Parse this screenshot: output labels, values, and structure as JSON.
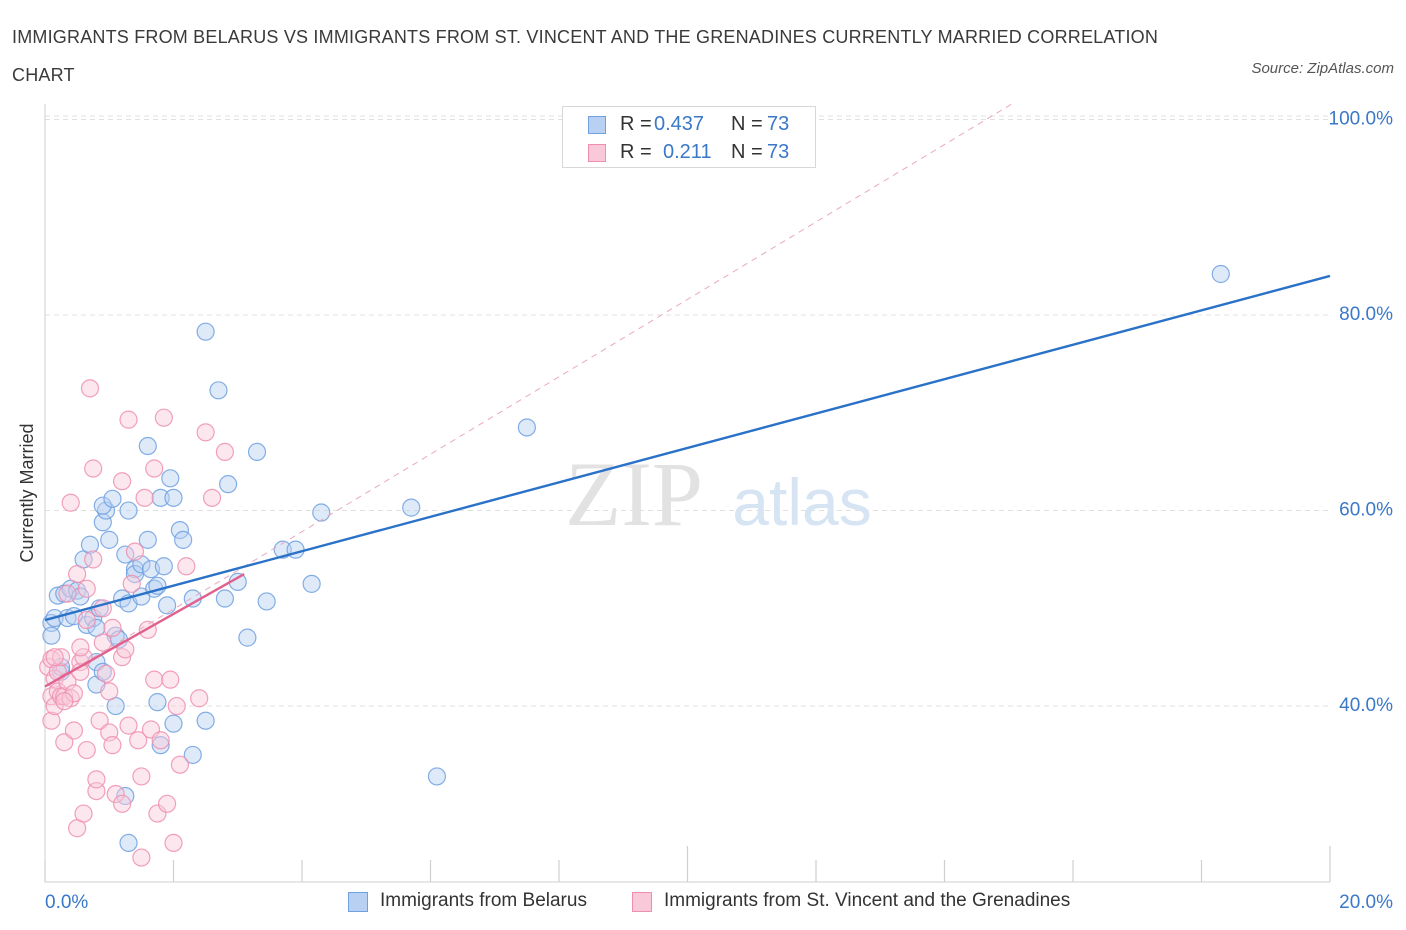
{
  "title": "IMMIGRANTS FROM BELARUS VS IMMIGRANTS FROM ST. VINCENT AND THE GRENADINES CURRENTLY MARRIED CORRELATION CHART",
  "source": "Source: ZipAtlas.com",
  "watermark": {
    "zip": "ZIP",
    "atlas": "atlas"
  },
  "colors": {
    "blue": "#6fa0e0",
    "blue_fill": "#b8d0f2",
    "blue_line": "#2a72c8",
    "pink": "#ee8fb0",
    "pink_fill": "#f9c9d9",
    "pink_line": "#e0608e",
    "axis_text": "#3a78c8",
    "grid": "#e0e0e0"
  },
  "legend_top": {
    "rows": [
      {
        "r_label": "R =",
        "r_value": "0.437",
        "n_label": "N =",
        "n_value": "73"
      },
      {
        "r_label": "R =",
        "r_value": "0.211",
        "n_label": "N =",
        "n_value": "73"
      }
    ]
  },
  "legend_bottom": {
    "series1": "Immigrants from Belarus",
    "series2": "Immigrants from St. Vincent and the Grenadines"
  },
  "chart_data": {
    "type": "scatter",
    "title": "IMMIGRANTS FROM BELARUS VS IMMIGRANTS FROM ST. VINCENT AND THE GRENADINES CURRENTLY MARRIED CORRELATION CHART",
    "xlabel": "",
    "ylabel": "Currently Married",
    "xlim": [
      0,
      20
    ],
    "ylim": [
      22,
      102
    ],
    "x_tick_labels": [
      {
        "value": 0,
        "label": "0.0%"
      },
      {
        "value": 20,
        "label": "20.0%"
      }
    ],
    "y_tick_labels": [
      {
        "value": 100,
        "label": "100.0%"
      },
      {
        "value": 80,
        "label": "80.0%"
      },
      {
        "value": 60,
        "label": "60.0%"
      },
      {
        "value": 40,
        "label": "40.0%"
      }
    ],
    "series": [
      {
        "name": "Immigrants from Belarus",
        "color": "#6fa0e0",
        "points": [
          [
            0.1,
            48.5
          ],
          [
            0.1,
            47.2
          ],
          [
            0.15,
            49.0
          ],
          [
            0.2,
            51.3
          ],
          [
            0.25,
            43.5
          ],
          [
            0.25,
            44.0
          ],
          [
            0.3,
            51.5
          ],
          [
            0.35,
            49.0
          ],
          [
            0.4,
            52.0
          ],
          [
            0.45,
            49.2
          ],
          [
            0.5,
            51.8
          ],
          [
            0.55,
            51.2
          ],
          [
            0.6,
            55.0
          ],
          [
            0.65,
            48.3
          ],
          [
            0.7,
            56.5
          ],
          [
            0.75,
            49.0
          ],
          [
            0.8,
            48.0
          ],
          [
            0.8,
            44.5
          ],
          [
            0.85,
            50.0
          ],
          [
            0.8,
            42.2
          ],
          [
            0.9,
            43.5
          ],
          [
            0.9,
            58.8
          ],
          [
            0.95,
            60.0
          ],
          [
            0.9,
            60.5
          ],
          [
            1.0,
            57.0
          ],
          [
            1.05,
            61.2
          ],
          [
            1.1,
            47.2
          ],
          [
            1.15,
            46.8
          ],
          [
            1.1,
            40.0
          ],
          [
            1.2,
            51.0
          ],
          [
            1.25,
            55.5
          ],
          [
            1.3,
            60.0
          ],
          [
            1.3,
            50.5
          ],
          [
            1.4,
            54.0
          ],
          [
            1.4,
            53.5
          ],
          [
            1.5,
            54.5
          ],
          [
            1.5,
            51.2
          ],
          [
            1.6,
            57.0
          ],
          [
            1.6,
            66.6
          ],
          [
            1.65,
            54.0
          ],
          [
            1.7,
            52.0
          ],
          [
            1.75,
            52.3
          ],
          [
            1.75,
            40.4
          ],
          [
            1.8,
            61.3
          ],
          [
            1.85,
            54.3
          ],
          [
            1.9,
            50.3
          ],
          [
            1.95,
            63.3
          ],
          [
            2.0,
            38.2
          ],
          [
            2.0,
            61.3
          ],
          [
            2.1,
            58.0
          ],
          [
            2.15,
            57.0
          ],
          [
            2.3,
            51.0
          ],
          [
            2.3,
            35.0
          ],
          [
            2.5,
            78.3
          ],
          [
            2.5,
            38.5
          ],
          [
            2.7,
            72.3
          ],
          [
            2.8,
            51.0
          ],
          [
            2.85,
            62.7
          ],
          [
            3.0,
            52.7
          ],
          [
            3.15,
            47.0
          ],
          [
            3.3,
            66.0
          ],
          [
            3.45,
            50.7
          ],
          [
            3.7,
            56.0
          ],
          [
            3.9,
            56.0
          ],
          [
            4.15,
            52.5
          ],
          [
            4.3,
            59.8
          ],
          [
            5.7,
            60.3
          ],
          [
            6.1,
            32.8
          ],
          [
            7.5,
            68.5
          ],
          [
            1.3,
            26.0
          ],
          [
            1.25,
            30.8
          ],
          [
            18.3,
            84.2
          ],
          [
            1.8,
            36.0
          ]
        ]
      },
      {
        "name": "Immigrants from St. Vincent and the Grenadines",
        "color": "#ee8fb0",
        "points": [
          [
            0.05,
            44.0
          ],
          [
            0.1,
            44.8
          ],
          [
            0.1,
            41.0
          ],
          [
            0.1,
            38.5
          ],
          [
            0.15,
            42.8
          ],
          [
            0.15,
            40.0
          ],
          [
            0.2,
            43.5
          ],
          [
            0.2,
            41.5
          ],
          [
            0.25,
            41.0
          ],
          [
            0.25,
            45.0
          ],
          [
            0.3,
            41.0
          ],
          [
            0.3,
            36.3
          ],
          [
            0.35,
            42.5
          ],
          [
            0.4,
            60.8
          ],
          [
            0.4,
            40.8
          ],
          [
            0.45,
            41.3
          ],
          [
            0.45,
            37.5
          ],
          [
            0.5,
            53.5
          ],
          [
            0.5,
            27.5
          ],
          [
            0.55,
            44.5
          ],
          [
            0.55,
            43.5
          ],
          [
            0.6,
            45.0
          ],
          [
            0.6,
            29.0
          ],
          [
            0.65,
            35.5
          ],
          [
            0.65,
            52.0
          ],
          [
            0.7,
            72.5
          ],
          [
            0.75,
            64.3
          ],
          [
            0.75,
            55.0
          ],
          [
            0.8,
            31.3
          ],
          [
            0.8,
            32.5
          ],
          [
            0.85,
            38.5
          ],
          [
            0.9,
            46.5
          ],
          [
            0.9,
            50.0
          ],
          [
            1.0,
            41.5
          ],
          [
            1.0,
            37.3
          ],
          [
            1.05,
            36.0
          ],
          [
            1.1,
            31.0
          ],
          [
            1.2,
            63.0
          ],
          [
            1.2,
            45.0
          ],
          [
            1.2,
            30.0
          ],
          [
            1.25,
            45.8
          ],
          [
            1.3,
            69.3
          ],
          [
            1.3,
            38.0
          ],
          [
            1.35,
            52.5
          ],
          [
            1.4,
            55.8
          ],
          [
            1.45,
            36.5
          ],
          [
            1.5,
            32.8
          ],
          [
            1.5,
            24.5
          ],
          [
            1.55,
            61.3
          ],
          [
            1.6,
            47.8
          ],
          [
            1.65,
            37.6
          ],
          [
            1.7,
            64.3
          ],
          [
            1.7,
            42.7
          ],
          [
            1.75,
            29.0
          ],
          [
            1.8,
            36.5
          ],
          [
            1.85,
            69.5
          ],
          [
            1.9,
            30.0
          ],
          [
            1.95,
            42.7
          ],
          [
            2.0,
            26.0
          ],
          [
            2.05,
            40.0
          ],
          [
            2.1,
            34.0
          ],
          [
            2.2,
            54.3
          ],
          [
            2.4,
            40.8
          ],
          [
            2.5,
            68.0
          ],
          [
            2.6,
            61.3
          ],
          [
            2.8,
            66.0
          ],
          [
            0.95,
            43.3
          ],
          [
            0.35,
            51.5
          ],
          [
            0.55,
            46.0
          ],
          [
            0.15,
            45.0
          ],
          [
            0.3,
            40.5
          ],
          [
            0.65,
            48.8
          ],
          [
            1.05,
            48.0
          ]
        ]
      }
    ],
    "trend_lines": [
      {
        "series": "Immigrants from Belarus",
        "x": [
          0,
          20
        ],
        "y": [
          48.8,
          84.0
        ]
      },
      {
        "series": "Immigrants from St. Vincent and the Grenadines",
        "x": [
          0,
          3.1
        ],
        "y": [
          42.0,
          53.5
        ]
      }
    ],
    "reference_line": {
      "style": "dashed",
      "x": [
        0,
        15.1
      ],
      "y": [
        42.0,
        101.8
      ]
    },
    "grid": true,
    "legend_position": "top-center"
  }
}
